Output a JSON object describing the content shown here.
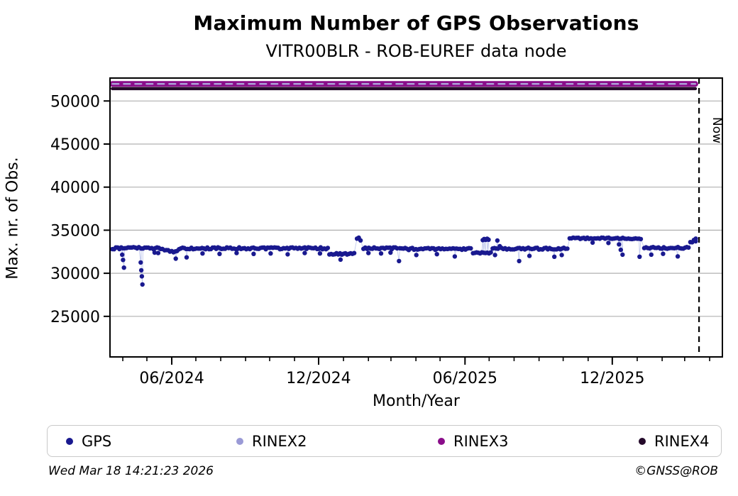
{
  "header": {
    "title": "Maximum Number of GPS Observations",
    "subtitle": "VITR00BLR - ROB-EUREF data node"
  },
  "footer": {
    "timestamp": "Wed Mar 18 14:21:23 2026",
    "credit": "©GNSS@ROB"
  },
  "legend": {
    "items": [
      {
        "label": "GPS",
        "color": "#19198f"
      },
      {
        "label": "RINEX2",
        "color": "#9a9ad6"
      },
      {
        "label": "RINEX3",
        "color": "#8a0d8a"
      },
      {
        "label": "RINEX4",
        "color": "#240a2a"
      }
    ]
  },
  "chart_data": {
    "type": "scatter",
    "title": "Maximum Number of GPS Observations",
    "subtitle": "VITR00BLR - ROB-EUREF data node",
    "xlabel": "Month/Year",
    "ylabel": "Max. nr. of Obs.",
    "x_unit": "decimal_year",
    "xlim": [
      2024.205,
      2026.29
    ],
    "ylim": [
      20290,
      52660
    ],
    "grid": {
      "horizontal": true,
      "vertical": false,
      "color": "#b0b0b0"
    },
    "yticks": [
      {
        "v": 50000,
        "label": "50000"
      },
      {
        "v": 45000,
        "label": "45000"
      },
      {
        "v": 40000,
        "label": "40000"
      },
      {
        "v": 35000,
        "label": "35000"
      },
      {
        "v": 30000,
        "label": "30000"
      },
      {
        "v": 25000,
        "label": "25000"
      }
    ],
    "xticks_major": [
      {
        "t": 2024.4153,
        "label": "06/2024"
      },
      {
        "t": 2024.9153,
        "label": "12/2024"
      },
      {
        "t": 2025.4137,
        "label": "06/2025"
      },
      {
        "t": 2025.9151,
        "label": "12/2025"
      }
    ],
    "xticks_minor": [
      2024.2486,
      2024.3306,
      2024.4153,
      2024.4973,
      2024.582,
      2024.6667,
      2024.7486,
      2024.8333,
      2024.9153,
      2025.0,
      2025.0849,
      2025.1616,
      2025.2466,
      2025.3288,
      2025.4137,
      2025.4959,
      2025.5808,
      2025.6658,
      2025.7479,
      2025.8329,
      2025.9151,
      2026.0,
      2026.0849,
      2026.1616,
      2026.2466
    ],
    "now_line": {
      "t": 2026.2105,
      "label": "Now",
      "style": "dashed-black"
    },
    "series": [
      {
        "name": "GPS",
        "marker_color": "#19198f",
        "connect_line_color": "#c3cbee",
        "marker_radius": 3.2,
        "sample_step_years": 0.00603,
        "segments": [
          [
            2024.213,
            2024.244,
            32900,
            110
          ],
          [
            2024.249,
            2024.306,
            32950,
            90
          ],
          [
            2024.311,
            2024.389,
            32900,
            110
          ],
          [
            2024.391,
            2024.438,
            32560,
            140
          ],
          [
            2024.44,
            2024.948,
            32900,
            110
          ],
          [
            2024.952,
            2025.042,
            32260,
            120
          ],
          [
            2025.046,
            2025.064,
            34050,
            280
          ],
          [
            2025.068,
            2025.185,
            32900,
            110
          ],
          [
            2025.192,
            2025.438,
            32820,
            120
          ],
          [
            2025.441,
            2025.505,
            32330,
            120
          ],
          [
            2025.508,
            2025.56,
            32950,
            200
          ],
          [
            2025.563,
            2025.766,
            32860,
            110
          ],
          [
            2025.77,
            2025.952,
            34060,
            80
          ],
          [
            2025.958,
            2026.018,
            34010,
            80
          ],
          [
            2026.024,
            2026.178,
            32950,
            110
          ],
          [
            2026.181,
            2026.203,
            33650,
            260
          ]
        ],
        "outliers": [
          [
            2024.2465,
            32150
          ],
          [
            2024.2495,
            31550
          ],
          [
            2024.2525,
            30650
          ],
          [
            2024.3095,
            31250
          ],
          [
            2024.3115,
            30350
          ],
          [
            2024.3135,
            29650
          ],
          [
            2024.3155,
            28700
          ],
          [
            2024.357,
            32400
          ],
          [
            2024.369,
            32350
          ],
          [
            2024.429,
            31700
          ],
          [
            2024.466,
            31850
          ],
          [
            2024.52,
            32300
          ],
          [
            2024.578,
            32250
          ],
          [
            2024.636,
            32350
          ],
          [
            2024.694,
            32250
          ],
          [
            2024.752,
            32300
          ],
          [
            2024.81,
            32200
          ],
          [
            2024.868,
            32350
          ],
          [
            2024.92,
            32300
          ],
          [
            2024.99,
            31580
          ],
          [
            2025.085,
            32350
          ],
          [
            2025.128,
            32300
          ],
          [
            2025.16,
            32400
          ],
          [
            2025.189,
            31420
          ],
          [
            2025.248,
            32120
          ],
          [
            2025.318,
            32220
          ],
          [
            2025.379,
            31950
          ],
          [
            2025.474,
            33850
          ],
          [
            2025.479,
            33980
          ],
          [
            2025.484,
            33880
          ],
          [
            2025.489,
            34010
          ],
          [
            2025.494,
            33900
          ],
          [
            2025.516,
            32120
          ],
          [
            2025.524,
            33800
          ],
          [
            2025.598,
            31420
          ],
          [
            2025.633,
            32020
          ],
          [
            2025.718,
            31920
          ],
          [
            2025.743,
            32120
          ],
          [
            2025.848,
            33560
          ],
          [
            2025.902,
            33520
          ],
          [
            2025.938,
            33350
          ],
          [
            2025.944,
            32720
          ],
          [
            2025.95,
            32160
          ],
          [
            2026.008,
            31920
          ],
          [
            2026.048,
            32160
          ],
          [
            2026.088,
            32260
          ],
          [
            2026.138,
            31960
          ],
          [
            2026.1995,
            34020
          ]
        ]
      },
      {
        "name": "RINEX3",
        "style": "band",
        "color": "#8a0d8a",
        "value": 51980,
        "t0": 2024.213,
        "t1": 2026.198,
        "stroke_width": 8
      },
      {
        "name": "RINEX2",
        "style": "dashed-band",
        "color": "#b0aede",
        "value": 51980,
        "t0": 2024.213,
        "t1": 2026.198,
        "stroke_width": 2.2,
        "dash": "9 7"
      },
      {
        "name": "RINEX4",
        "style": "band",
        "color": "#240a2a",
        "value": 51430,
        "t0": 2024.213,
        "t1": 2026.198,
        "stroke_width": 4.5
      }
    ]
  }
}
